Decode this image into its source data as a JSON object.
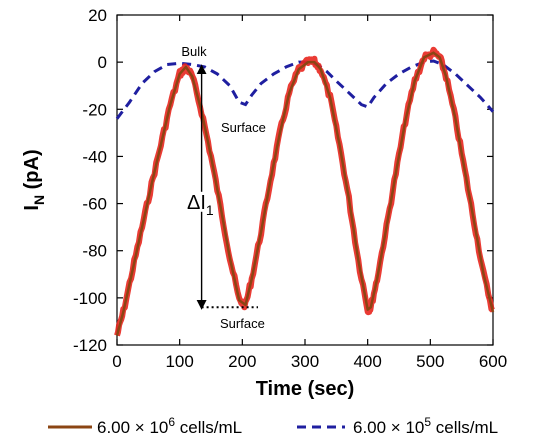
{
  "chart_data": {
    "type": "line",
    "xlabel": "Time (sec)",
    "ylabel_main": "I",
    "ylabel_sub": "N",
    "ylabel_unit": "(pA)",
    "xlim": [
      0,
      600
    ],
    "ylim": [
      -120,
      20
    ],
    "x_ticks": [
      "0",
      "100",
      "200",
      "300",
      "400",
      "500",
      "600"
    ],
    "y_ticks": [
      "20",
      "0",
      "-20",
      "-40",
      "-60",
      "-80",
      "-100",
      "-120"
    ],
    "grid": false,
    "legend_position": "bottom",
    "series": [
      {
        "name_prefix": "6.00 × 10",
        "name_exp": "6",
        "name_suffix": " cells/mL",
        "color": "#8B4513",
        "noise_color": "#E8261E",
        "style": "solid",
        "x": [
          0,
          10,
          25,
          40,
          55,
          70,
          85,
          100,
          110,
          120,
          135,
          150,
          165,
          180,
          195,
          205,
          215,
          230,
          245,
          260,
          275,
          290,
          305,
          315,
          325,
          340,
          355,
          370,
          385,
          400,
          405,
          415,
          430,
          445,
          460,
          475,
          490,
          505,
          515,
          525,
          540,
          555,
          570,
          585,
          600
        ],
        "y": [
          -116,
          -106,
          -88,
          -70,
          -52,
          -35,
          -18,
          -5,
          -2,
          -6,
          -21,
          -40,
          -61,
          -83,
          -101,
          -103,
          -92,
          -72,
          -50,
          -30,
          -13,
          -3,
          0,
          0,
          -3,
          -15,
          -35,
          -58,
          -84,
          -105,
          -104,
          -92,
          -70,
          -47,
          -25,
          -8,
          2,
          4,
          2,
          -6,
          -24,
          -46,
          -68,
          -90,
          -106
        ]
      },
      {
        "name_prefix": "6.00 × 10",
        "name_exp": "5",
        "name_suffix": " cells/mL",
        "color": "#1F1FA0",
        "style": "dashed",
        "x": [
          0,
          20,
          40,
          60,
          80,
          100,
          120,
          140,
          160,
          180,
          195,
          205,
          215,
          230,
          250,
          270,
          290,
          305,
          320,
          335,
          350,
          370,
          390,
          400,
          410,
          430,
          450,
          470,
          490,
          505,
          520,
          540,
          560,
          580,
          600
        ],
        "y": [
          -24,
          -17,
          -9,
          -4,
          -1,
          -0.5,
          -1,
          -2,
          -5,
          -10,
          -17,
          -18,
          -14,
          -9,
          -5,
          -2,
          0,
          0,
          -1,
          -4,
          -8,
          -13,
          -18,
          -19,
          -15,
          -9,
          -5,
          -2,
          0,
          0.5,
          -1,
          -5,
          -10,
          -15,
          -21
        ]
      }
    ],
    "annotations": [
      {
        "text": "Bulk"
      },
      {
        "text": "Surface",
        "id": "surface-upper"
      },
      {
        "text": "Surface",
        "id": "surface-lower"
      },
      {
        "text_main": "ΔI",
        "text_sub": "1"
      }
    ]
  }
}
